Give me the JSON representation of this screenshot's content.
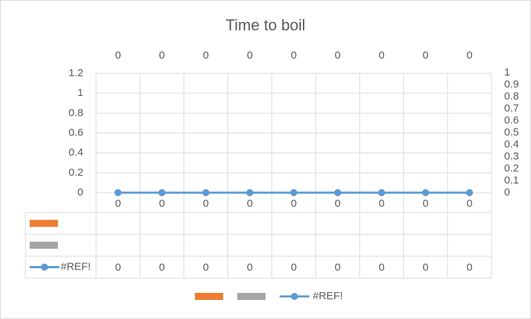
{
  "chart_data": {
    "type": "line",
    "title": "Time to boil",
    "categories": [
      "0",
      "0",
      "0",
      "0",
      "0",
      "0",
      "0",
      "0",
      "0"
    ],
    "series": [
      {
        "color": "#ed7d31",
        "values": [
          null,
          null,
          null,
          null,
          null,
          null,
          null,
          null,
          null
        ]
      },
      {
        "color": "#a5a5a5",
        "values": [
          null,
          null,
          null,
          null,
          null,
          null,
          null,
          null,
          null
        ]
      },
      {
        "name": "#REF!",
        "color": "#5b9bd5",
        "values": [
          0,
          0,
          0,
          0,
          0,
          0,
          0,
          0,
          0
        ]
      }
    ],
    "ylim": [
      0,
      1.2
    ],
    "yticks": [
      0,
      0.2,
      0.4,
      0.6,
      0.8,
      1,
      1.2
    ],
    "y2lim": [
      0,
      1
    ],
    "y2ticks": [
      0,
      0.1,
      0.2,
      0.3,
      0.4,
      0.5,
      0.6,
      0.7,
      0.8,
      0.9,
      1
    ],
    "grid": true,
    "data_table": true,
    "legend": "bottom"
  }
}
